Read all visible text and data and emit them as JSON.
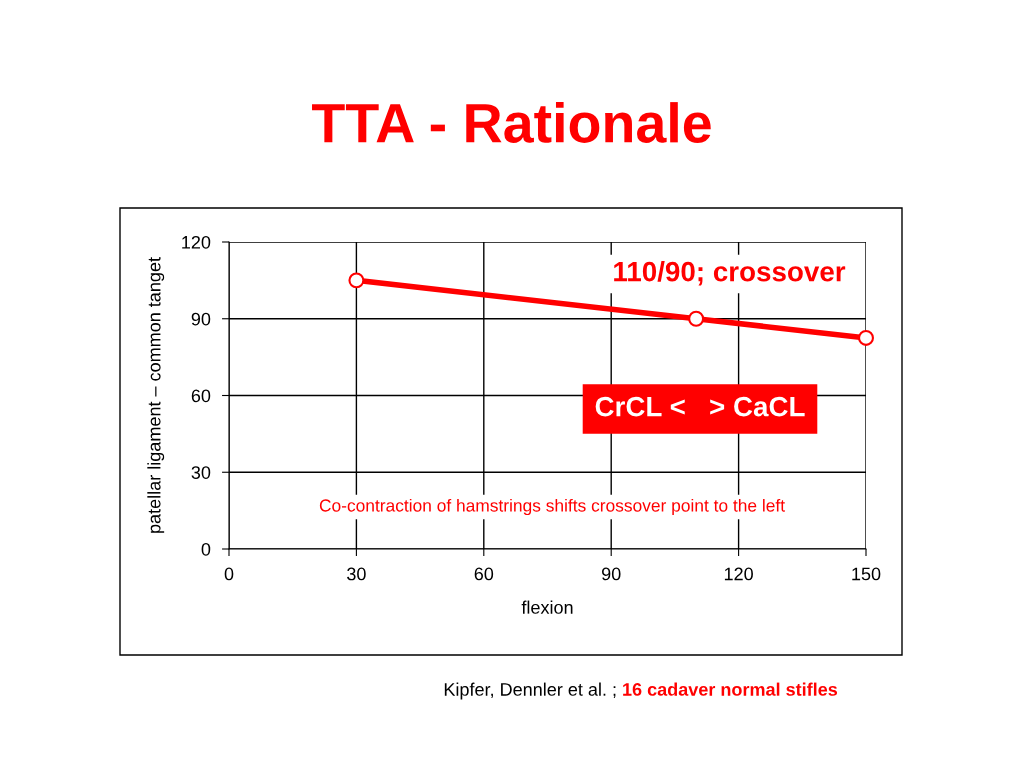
{
  "chart_data": {
    "type": "line",
    "title": "TTA - Rationale",
    "xlabel": "flexion",
    "ylabel": "patellar ligament – common tanget",
    "x": [
      30,
      110,
      150
    ],
    "series": [
      {
        "color": "#ff0000",
        "values": [
          105,
          90,
          82.5
        ]
      }
    ],
    "xlim": [
      0,
      150
    ],
    "xticks": [
      0,
      30,
      60,
      90,
      120,
      150
    ],
    "ylim": [
      0,
      120
    ],
    "yticks": [
      0,
      30,
      60,
      90,
      120
    ],
    "grid": true,
    "marker": "circle",
    "line_style": "solid",
    "annotations": [
      "110/90; crossover",
      "CrCL <   > CaCL",
      "Co-contraction of hamstrings shifts crossover point to the left",
      "Kipfer, Dennler et al. ;",
      "16 cadaver normal stifles"
    ]
  }
}
